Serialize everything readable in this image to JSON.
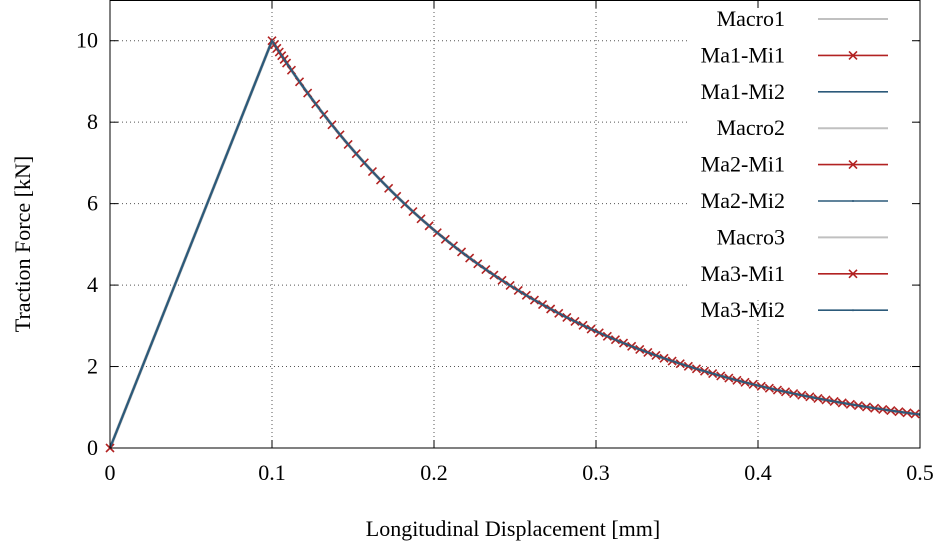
{
  "chart_data": {
    "type": "line",
    "title": "",
    "xlabel": "Longitudinal Displacement [mm]",
    "ylabel": "Traction Force [kN]",
    "xlim": [
      0,
      0.5
    ],
    "ylim": [
      0,
      11
    ],
    "xticks": [
      "0",
      "0.1",
      "0.2",
      "0.3",
      "0.4",
      "0.5"
    ],
    "yticks": [
      "0",
      "2",
      "4",
      "6",
      "8",
      "10"
    ],
    "grid": true,
    "legend_position": "top-right",
    "colors": {
      "macro": "#c0c0c0",
      "mi1": "#b22222",
      "mi2": "#2c5a7a"
    },
    "curve_points": {
      "x": [
        0,
        0.1,
        0.11,
        0.12,
        0.14,
        0.16,
        0.18,
        0.2,
        0.25,
        0.3,
        0.35,
        0.4,
        0.45,
        0.5
      ],
      "y": [
        0,
        10,
        9.0,
        8.2,
        6.9,
        5.9,
        5.1,
        4.5,
        3.3,
        2.5,
        1.9,
        1.45,
        1.1,
        0.85
      ]
    },
    "series": [
      {
        "name": "Macro1",
        "style": "macro"
      },
      {
        "name": "Ma1-Mi1",
        "style": "mi1"
      },
      {
        "name": "Ma1-Mi2",
        "style": "mi2"
      },
      {
        "name": "Macro2",
        "style": "macro"
      },
      {
        "name": "Ma2-Mi1",
        "style": "mi1"
      },
      {
        "name": "Ma2-Mi2",
        "style": "mi2"
      },
      {
        "name": "Macro3",
        "style": "macro"
      },
      {
        "name": "Ma3-Mi1",
        "style": "mi1"
      },
      {
        "name": "Ma3-Mi2",
        "style": "mi2"
      }
    ]
  }
}
